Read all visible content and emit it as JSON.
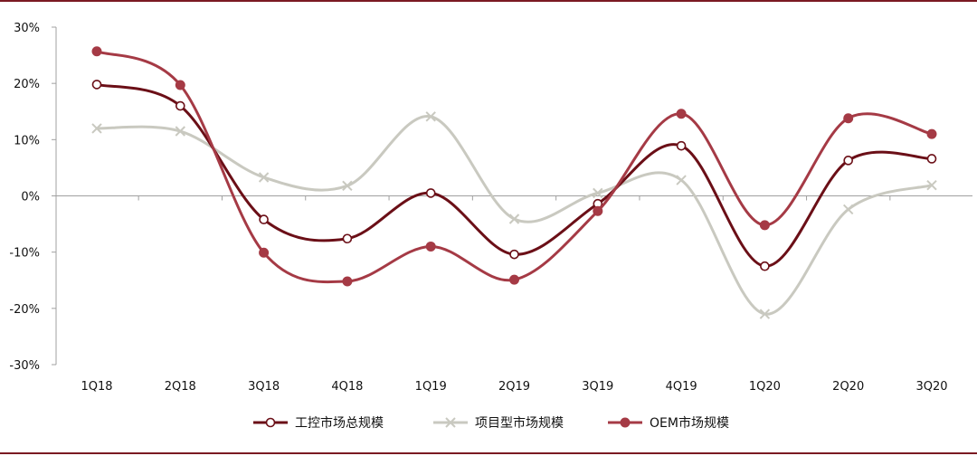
{
  "chart_data": {
    "type": "line",
    "categories": [
      "1Q18",
      "2Q18",
      "3Q18",
      "4Q18",
      "1Q19",
      "2Q19",
      "3Q19",
      "4Q19",
      "1Q20",
      "2Q20",
      "3Q20"
    ],
    "ylim": [
      -30,
      30
    ],
    "yticks": [
      30,
      20,
      10,
      0,
      -10,
      -20,
      -30
    ],
    "ytick_labels": [
      "30%",
      "20%",
      "10%",
      "0%",
      "-10%",
      "-20%",
      "-30%"
    ],
    "legend_position": "bottom",
    "grid": false,
    "series": [
      {
        "name": "工控市场总规模",
        "marker": "open-circle",
        "color": "#6b0f17",
        "values": [
          19.8,
          16.0,
          -4.2,
          -7.6,
          0.5,
          -10.4,
          -1.4,
          8.9,
          -12.5,
          6.3,
          6.6
        ]
      },
      {
        "name": "项目型市场规模",
        "marker": "x",
        "color": "#c9c9c0",
        "values": [
          12.0,
          11.5,
          3.3,
          1.8,
          14.1,
          -4.1,
          0.5,
          2.8,
          -21.0,
          -2.4,
          1.9
        ]
      },
      {
        "name": "OEM市场规模",
        "marker": "filled-circle",
        "color": "#a53a45",
        "values": [
          25.7,
          19.7,
          -10.1,
          -15.2,
          -9.0,
          -14.9,
          -2.7,
          14.6,
          -5.2,
          13.8,
          11.0
        ]
      }
    ]
  }
}
